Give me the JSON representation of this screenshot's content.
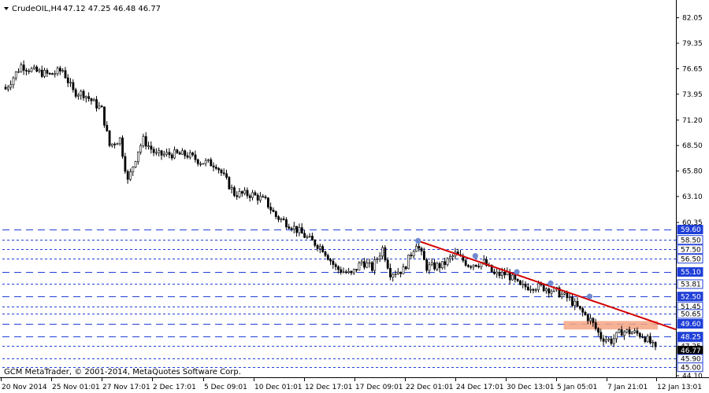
{
  "header": {
    "symbol": "CrudeOIL,H4",
    "ohlc": "47.12 47.25 46.48 46.77"
  },
  "copyright": "GCM MetaTrader, © 2001-2014, MetaQuotes Software Corp.",
  "colors": {
    "background": "#ffffff",
    "candle_body": "#000000",
    "level_line": "#1f3fd8",
    "trendline": "#d40000",
    "support_zone": "#f4a582",
    "touch_marker": "#6f8ad0",
    "label_box": "#1f3fd8"
  },
  "chart_data": {
    "type": "candlestick",
    "title": "",
    "y_axis": {
      "min": 44.1,
      "max": 83.6,
      "tick_labels": [
        "82.05",
        "79.35",
        "76.65",
        "73.95",
        "71.20",
        "68.50",
        "65.80",
        "63.10",
        "60.35",
        "44.10"
      ]
    },
    "x_axis": {
      "tick_labels": [
        "20 Nov 2014",
        "25 Nov 01:01",
        "27 Nov 17:01",
        "2 Dec 17:01",
        "5 Dec 09:01",
        "10 Dec 01:01",
        "12 Dec 17:01",
        "17 Dec 09:01",
        "22 Dec 01:01",
        "24 Dec 17:01",
        "30 Dec 13:01",
        "5 Jan 05:01",
        "7 Jan 21:01",
        "12 Jan 13:01"
      ]
    },
    "price_levels": [
      {
        "price": 59.6,
        "label": "59.60",
        "style": "long-dash",
        "highlight": true
      },
      {
        "price": 58.5,
        "label": "58.50",
        "style": "dash",
        "highlight": false
      },
      {
        "price": 57.5,
        "label": "57.50",
        "style": "dash",
        "highlight": false
      },
      {
        "price": 56.5,
        "label": "56.50",
        "style": "dash",
        "highlight": false
      },
      {
        "price": 55.1,
        "label": "55.10",
        "style": "long-dash",
        "highlight": true
      },
      {
        "price": 53.81,
        "label": "53.81",
        "style": "dash",
        "highlight": false
      },
      {
        "price": 52.5,
        "label": "52.50",
        "style": "long-dash",
        "highlight": true
      },
      {
        "price": 51.45,
        "label": "51.45",
        "style": "dash",
        "highlight": false
      },
      {
        "price": 50.65,
        "label": "50.65",
        "style": "dash",
        "highlight": false
      },
      {
        "price": 49.6,
        "label": "49.60",
        "style": "long-dash",
        "highlight": true
      },
      {
        "price": 48.25,
        "label": "48.25",
        "style": "long-dash",
        "highlight": true
      },
      {
        "price": 47.25,
        "label": "47.25",
        "style": "dash",
        "highlight": false
      },
      {
        "price": 46.77,
        "label": "46.77",
        "style": "current",
        "highlight": true
      },
      {
        "price": 45.9,
        "label": "45.90",
        "style": "dash",
        "highlight": false
      },
      {
        "price": 45.0,
        "label": "45.00",
        "style": "dash",
        "highlight": false
      }
    ],
    "trendline": {
      "start_index": 159,
      "start_price": 58.4,
      "end_index": 250,
      "end_price": 49.0
    },
    "support_zone": {
      "start_index": 215,
      "end_index": 250,
      "low": 49.0,
      "high": 49.9
    },
    "touch_points": [
      {
        "index": 159,
        "price": 58.4
      },
      {
        "index": 181,
        "price": 56.8
      },
      {
        "index": 197,
        "price": 55.1
      },
      {
        "index": 210,
        "price": 53.9
      },
      {
        "index": 225,
        "price": 52.5
      }
    ],
    "anchors": [
      {
        "i": 0,
        "p": 74.5
      },
      {
        "i": 6,
        "p": 77.0
      },
      {
        "i": 11,
        "p": 76.4
      },
      {
        "i": 17,
        "p": 76.0
      },
      {
        "i": 22,
        "p": 76.5
      },
      {
        "i": 26,
        "p": 74.2
      },
      {
        "i": 30,
        "p": 74.0
      },
      {
        "i": 37,
        "p": 72.3
      },
      {
        "i": 40,
        "p": 68.5
      },
      {
        "i": 44,
        "p": 69.2
      },
      {
        "i": 47,
        "p": 64.7
      },
      {
        "i": 51,
        "p": 68.0
      },
      {
        "i": 53,
        "p": 69.1
      },
      {
        "i": 58,
        "p": 67.5
      },
      {
        "i": 65,
        "p": 67.6
      },
      {
        "i": 70,
        "p": 67.5
      },
      {
        "i": 75,
        "p": 66.8
      },
      {
        "i": 81,
        "p": 66.5
      },
      {
        "i": 88,
        "p": 63.4
      },
      {
        "i": 95,
        "p": 63.3
      },
      {
        "i": 100,
        "p": 62.6
      },
      {
        "i": 104,
        "p": 61.0
      },
      {
        "i": 110,
        "p": 60.0
      },
      {
        "i": 117,
        "p": 58.5
      },
      {
        "i": 122,
        "p": 57.6
      },
      {
        "i": 127,
        "p": 55.5
      },
      {
        "i": 133,
        "p": 54.8
      },
      {
        "i": 137,
        "p": 56.2
      },
      {
        "i": 141,
        "p": 55.5
      },
      {
        "i": 145,
        "p": 57.6
      },
      {
        "i": 148,
        "p": 55.0
      },
      {
        "i": 153,
        "p": 55.3
      },
      {
        "i": 158,
        "p": 58.2
      },
      {
        "i": 162,
        "p": 55.6
      },
      {
        "i": 168,
        "p": 55.8
      },
      {
        "i": 173,
        "p": 57.0
      },
      {
        "i": 178,
        "p": 55.9
      },
      {
        "i": 184,
        "p": 56.1
      },
      {
        "i": 188,
        "p": 54.8
      },
      {
        "i": 193,
        "p": 54.9
      },
      {
        "i": 198,
        "p": 53.5
      },
      {
        "i": 203,
        "p": 53.6
      },
      {
        "i": 208,
        "p": 53.4
      },
      {
        "i": 212,
        "p": 53.0
      },
      {
        "i": 217,
        "p": 52.2
      },
      {
        "i": 221,
        "p": 51.0
      },
      {
        "i": 225,
        "p": 50.0
      },
      {
        "i": 229,
        "p": 48.2
      },
      {
        "i": 233,
        "p": 47.8
      },
      {
        "i": 237,
        "p": 48.8
      },
      {
        "i": 241,
        "p": 48.7
      },
      {
        "i": 245,
        "p": 48.4
      },
      {
        "i": 248,
        "p": 47.6
      },
      {
        "i": 250,
        "p": 46.8
      }
    ]
  }
}
